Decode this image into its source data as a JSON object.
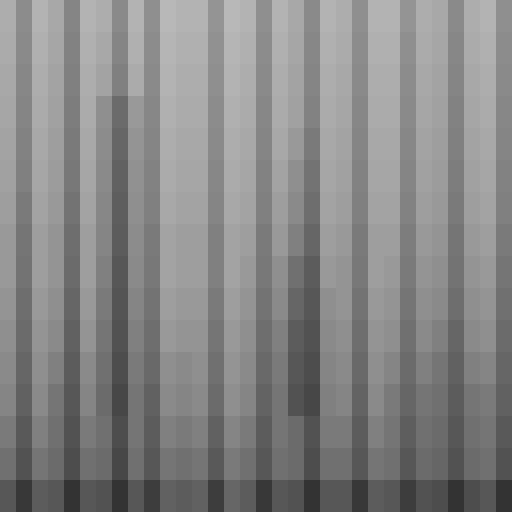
{
  "chart_data": {
    "type": "heatmap",
    "tick_labels": false,
    "colors": [
      "#ffffff",
      "#000000"
    ],
    "color_range": [
      0,
      100
    ],
    "cells": [
      [
        32,
        45,
        30,
        34,
        48,
        30,
        32,
        46,
        30,
        44,
        28,
        30,
        30,
        42,
        28,
        30,
        44,
        30,
        34,
        46,
        30,
        32,
        44,
        30,
        30,
        42,
        32,
        34,
        46,
        32,
        30,
        44
      ],
      [
        33,
        46,
        31,
        35,
        49,
        31,
        34,
        48,
        31,
        45,
        29,
        31,
        31,
        43,
        29,
        31,
        45,
        31,
        35,
        47,
        31,
        33,
        45,
        31,
        31,
        44,
        33,
        35,
        47,
        33,
        31,
        45
      ],
      [
        34,
        47,
        32,
        36,
        50,
        32,
        36,
        50,
        33,
        46,
        30,
        32,
        32,
        44,
        30,
        32,
        46,
        32,
        36,
        48,
        32,
        34,
        46,
        32,
        32,
        45,
        34,
        36,
        48,
        34,
        32,
        46
      ],
      [
        35,
        48,
        33,
        37,
        51,
        33,
        44,
        58,
        40,
        47,
        31,
        33,
        33,
        45,
        31,
        33,
        47,
        33,
        37,
        49,
        33,
        35,
        47,
        33,
        33,
        46,
        35,
        37,
        49,
        35,
        33,
        47
      ],
      [
        36,
        49,
        34,
        38,
        52,
        34,
        45,
        60,
        42,
        48,
        32,
        34,
        34,
        46,
        32,
        34,
        48,
        34,
        40,
        52,
        34,
        36,
        48,
        34,
        34,
        47,
        36,
        38,
        50,
        36,
        34,
        48
      ],
      [
        37,
        50,
        35,
        39,
        53,
        35,
        46,
        62,
        43,
        49,
        33,
        35,
        35,
        47,
        33,
        35,
        49,
        36,
        44,
        55,
        35,
        37,
        49,
        35,
        35,
        48,
        37,
        39,
        51,
        37,
        35,
        49
      ],
      [
        38,
        52,
        36,
        40,
        55,
        36,
        47,
        63,
        44,
        50,
        34,
        36,
        36,
        48,
        34,
        36,
        50,
        38,
        46,
        57,
        36,
        38,
        50,
        36,
        36,
        49,
        38,
        40,
        52,
        38,
        36,
        50
      ],
      [
        40,
        54,
        38,
        42,
        57,
        38,
        48,
        64,
        45,
        52,
        36,
        38,
        38,
        50,
        36,
        38,
        52,
        40,
        50,
        60,
        38,
        40,
        52,
        38,
        38,
        51,
        40,
        42,
        54,
        40,
        38,
        52
      ],
      [
        40,
        55,
        38,
        42,
        58,
        38,
        50,
        66,
        46,
        53,
        36,
        38,
        38,
        50,
        36,
        40,
        53,
        44,
        56,
        64,
        40,
        42,
        53,
        38,
        40,
        52,
        42,
        44,
        55,
        42,
        40,
        54
      ],
      [
        42,
        57,
        40,
        44,
        60,
        40,
        52,
        67,
        48,
        55,
        38,
        40,
        40,
        52,
        38,
        42,
        55,
        46,
        60,
        66,
        44,
        42,
        55,
        40,
        42,
        54,
        44,
        46,
        57,
        44,
        42,
        56
      ],
      [
        44,
        58,
        42,
        46,
        62,
        42,
        54,
        68,
        50,
        57,
        40,
        42,
        42,
        54,
        40,
        44,
        57,
        50,
        64,
        68,
        46,
        44,
        57,
        42,
        44,
        56,
        46,
        50,
        60,
        46,
        44,
        58
      ],
      [
        46,
        60,
        44,
        50,
        64,
        46,
        56,
        70,
        52,
        59,
        44,
        46,
        44,
        56,
        42,
        46,
        59,
        52,
        66,
        70,
        48,
        46,
        59,
        44,
        48,
        58,
        50,
        54,
        62,
        50,
        48,
        60
      ],
      [
        48,
        62,
        46,
        54,
        66,
        48,
        58,
        72,
        54,
        62,
        46,
        48,
        46,
        58,
        44,
        48,
        61,
        54,
        68,
        72,
        50,
        48,
        61,
        46,
        52,
        60,
        54,
        56,
        64,
        54,
        52,
        62
      ],
      [
        52,
        65,
        50,
        56,
        68,
        52,
        56,
        70,
        54,
        64,
        50,
        52,
        50,
        62,
        48,
        52,
        64,
        54,
        58,
        68,
        52,
        52,
        64,
        50,
        54,
        63,
        56,
        58,
        66,
        56,
        54,
        65
      ],
      [
        56,
        68,
        54,
        58,
        70,
        56,
        58,
        72,
        56,
        66,
        54,
        56,
        54,
        65,
        52,
        56,
        66,
        56,
        58,
        70,
        56,
        56,
        66,
        54,
        56,
        66,
        58,
        60,
        68,
        58,
        56,
        68
      ],
      [
        66,
        78,
        64,
        66,
        80,
        66,
        68,
        80,
        66,
        76,
        62,
        64,
        62,
        76,
        60,
        64,
        78,
        66,
        68,
        80,
        66,
        66,
        78,
        64,
        66,
        76,
        68,
        70,
        80,
        70,
        66,
        80
      ]
    ]
  }
}
